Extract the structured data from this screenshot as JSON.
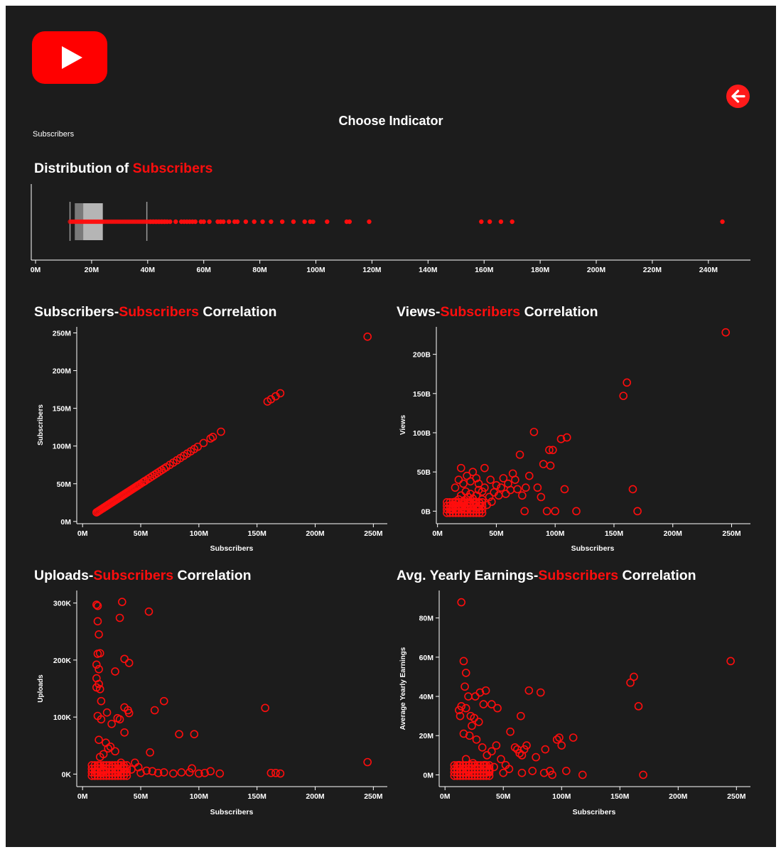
{
  "header": {
    "logo_icon": "youtube-play-icon",
    "back_icon": "arrow-left-circle-icon",
    "choose_title": "Choose Indicator",
    "indicator_value": "Subscribers"
  },
  "colors": {
    "accent": "#ff0d0d",
    "panel_bg": "#1c1c1c",
    "text": "#ffffff",
    "box": "#bfbfbf"
  },
  "titles": {
    "dist": {
      "pre": "Distribution of ",
      "red": "Subscribers",
      "post": ""
    },
    "c1": {
      "pre": "Subscribers-",
      "red": "Subscribers",
      "post": " Correlation"
    },
    "c2": {
      "pre": "Views-",
      "red": "Subscribers",
      "post": " Correlation"
    },
    "c3": {
      "pre": "Uploads-",
      "red": "Subscribers",
      "post": " Correlation"
    },
    "c4": {
      "pre": "Avg. Yearly Earnings-",
      "red": "Subscribers",
      "post": " Correlation"
    }
  },
  "chart_data": [
    {
      "id": "dist",
      "type": "boxplot",
      "xlim": [
        0,
        255
      ],
      "xticks": [
        0,
        20,
        40,
        60,
        80,
        100,
        120,
        140,
        160,
        180,
        200,
        220,
        240
      ],
      "xtick_labels": [
        "0M",
        "20M",
        "40M",
        "60M",
        "80M",
        "100M",
        "120M",
        "140M",
        "160M",
        "180M",
        "200M",
        "220M",
        "240M"
      ],
      "box": {
        "whisker_low": 12.3,
        "q1": 14,
        "median": 17,
        "q3": 24,
        "whisker_high": 39.7
      },
      "outliers": [
        41,
        42,
        43,
        44,
        45,
        46,
        47,
        48,
        50,
        52,
        53,
        54,
        55,
        56,
        57,
        59,
        60,
        62,
        65,
        66,
        67,
        69,
        71,
        72,
        75,
        78,
        81,
        84,
        88,
        92,
        96,
        98,
        99,
        104,
        111,
        112,
        119,
        159,
        162,
        166,
        170,
        245
      ]
    },
    {
      "id": "c1",
      "type": "scatter",
      "xlabel": "Subscribers",
      "ylabel": "Subscribers",
      "xlim": [
        -5,
        262
      ],
      "ylim": [
        -3,
        258
      ],
      "xticks": [
        0,
        50,
        100,
        150,
        200,
        250
      ],
      "xtick_labels": [
        "0M",
        "50M",
        "100M",
        "150M",
        "200M",
        "250M"
      ],
      "yticks": [
        0,
        50,
        100,
        150,
        200,
        250
      ],
      "ytick_labels": [
        "0M",
        "50M",
        "100M",
        "150M",
        "200M",
        "250M"
      ],
      "points": [
        [
          12,
          12
        ],
        [
          13,
          13
        ],
        [
          14,
          14
        ],
        [
          15,
          15
        ],
        [
          16,
          16
        ],
        [
          17,
          17
        ],
        [
          18,
          18
        ],
        [
          19,
          19
        ],
        [
          20,
          20
        ],
        [
          21,
          21
        ],
        [
          22,
          22
        ],
        [
          23,
          23
        ],
        [
          24,
          24
        ],
        [
          25,
          25
        ],
        [
          26,
          26
        ],
        [
          27,
          27
        ],
        [
          28,
          28
        ],
        [
          29,
          29
        ],
        [
          30,
          30
        ],
        [
          31,
          31
        ],
        [
          32,
          32
        ],
        [
          33,
          33
        ],
        [
          34,
          34
        ],
        [
          35,
          35
        ],
        [
          36,
          36
        ],
        [
          37,
          37
        ],
        [
          38,
          38
        ],
        [
          39,
          39
        ],
        [
          40,
          40
        ],
        [
          41,
          41
        ],
        [
          42,
          42
        ],
        [
          43,
          43
        ],
        [
          44,
          44
        ],
        [
          45,
          45
        ],
        [
          46,
          46
        ],
        [
          47,
          47
        ],
        [
          48,
          48
        ],
        [
          50,
          50
        ],
        [
          52,
          52
        ],
        [
          53,
          53
        ],
        [
          54,
          54
        ],
        [
          56,
          56
        ],
        [
          58,
          58
        ],
        [
          60,
          60
        ],
        [
          62,
          62
        ],
        [
          64,
          64
        ],
        [
          66,
          66
        ],
        [
          68,
          68
        ],
        [
          70,
          70
        ],
        [
          72,
          72
        ],
        [
          75,
          75
        ],
        [
          78,
          78
        ],
        [
          81,
          81
        ],
        [
          84,
          84
        ],
        [
          87,
          87
        ],
        [
          90,
          90
        ],
        [
          93,
          93
        ],
        [
          96,
          96
        ],
        [
          99,
          99
        ],
        [
          104,
          104
        ],
        [
          110,
          110
        ],
        [
          112,
          112
        ],
        [
          119,
          119
        ],
        [
          159,
          159
        ],
        [
          162,
          162
        ],
        [
          166,
          166
        ],
        [
          170,
          170
        ],
        [
          245,
          245
        ]
      ]
    },
    {
      "id": "c2",
      "type": "scatter",
      "xlabel": "Subscribers",
      "ylabel": "Views",
      "xlim": [
        -1,
        266
      ],
      "ylim": [
        -16,
        235
      ],
      "xticks": [
        0,
        50,
        100,
        150,
        200,
        250
      ],
      "xtick_labels": [
        "0M",
        "50M",
        "100M",
        "150M",
        "200M",
        "250M"
      ],
      "yticks": [
        0,
        50,
        100,
        150,
        200
      ],
      "ytick_labels": [
        "0B",
        "50B",
        "100B",
        "150B",
        "200B"
      ],
      "points": [
        [
          12,
          2
        ],
        [
          13,
          5
        ],
        [
          14,
          8
        ],
        [
          15,
          12
        ],
        [
          16,
          3
        ],
        [
          17,
          10
        ],
        [
          18,
          15
        ],
        [
          19,
          6
        ],
        [
          20,
          20
        ],
        [
          21,
          4
        ],
        [
          22,
          9
        ],
        [
          23,
          14
        ],
        [
          24,
          25
        ],
        [
          25,
          7
        ],
        [
          26,
          18
        ],
        [
          27,
          11
        ],
        [
          28,
          22
        ],
        [
          29,
          3
        ],
        [
          30,
          16
        ],
        [
          31,
          8
        ],
        [
          32,
          12
        ],
        [
          33,
          20
        ],
        [
          34,
          5
        ],
        [
          35,
          27
        ],
        [
          36,
          10
        ],
        [
          38,
          15
        ],
        [
          40,
          30
        ],
        [
          42,
          8
        ],
        [
          44,
          18
        ],
        [
          46,
          12
        ],
        [
          48,
          24
        ],
        [
          50,
          33
        ],
        [
          52,
          20
        ],
        [
          54,
          30
        ],
        [
          56,
          42
        ],
        [
          58,
          22
        ],
        [
          60,
          35
        ],
        [
          62,
          27
        ],
        [
          64,
          48
        ],
        [
          66,
          40
        ],
        [
          68,
          28
        ],
        [
          70,
          72
        ],
        [
          72,
          20
        ],
        [
          75,
          30
        ],
        [
          78,
          45
        ],
        [
          82,
          101
        ],
        [
          85,
          30
        ],
        [
          88,
          18
        ],
        [
          90,
          60
        ],
        [
          95,
          78
        ],
        [
          96,
          58
        ],
        [
          98,
          78
        ],
        [
          105,
          92
        ],
        [
          110,
          94
        ],
        [
          108,
          28
        ],
        [
          118,
          0
        ],
        [
          100,
          0
        ],
        [
          74,
          0
        ],
        [
          93,
          0
        ],
        [
          158,
          147
        ],
        [
          161,
          164
        ],
        [
          166,
          28
        ],
        [
          170,
          0
        ],
        [
          245,
          228
        ],
        [
          20,
          55
        ],
        [
          25,
          45
        ],
        [
          30,
          50
        ],
        [
          35,
          35
        ],
        [
          40,
          55
        ],
        [
          45,
          40
        ],
        [
          15,
          30
        ],
        [
          18,
          40
        ],
        [
          22,
          35
        ],
        [
          28,
          38
        ],
        [
          33,
          42
        ],
        [
          38,
          25
        ]
      ]
    },
    {
      "id": "c3",
      "type": "scatter",
      "xlabel": "Subscribers",
      "ylabel": "Uploads",
      "xlim": [
        -5,
        262
      ],
      "ylim": [
        -22,
        322
      ],
      "xticks": [
        0,
        50,
        100,
        150,
        200,
        250
      ],
      "xtick_labels": [
        "0M",
        "50M",
        "100M",
        "150M",
        "200M",
        "250M"
      ],
      "yticks": [
        0,
        100,
        200,
        300
      ],
      "ytick_labels": [
        "0K",
        "100K",
        "200K",
        "300K"
      ],
      "points": [
        [
          12,
          297
        ],
        [
          13,
          295
        ],
        [
          34,
          302
        ],
        [
          57,
          285
        ],
        [
          32,
          274
        ],
        [
          13,
          268
        ],
        [
          14,
          245
        ],
        [
          13,
          211
        ],
        [
          15,
          212
        ],
        [
          36,
          202
        ],
        [
          40,
          195
        ],
        [
          12,
          192
        ],
        [
          14,
          184
        ],
        [
          28,
          180
        ],
        [
          12,
          168
        ],
        [
          12,
          152
        ],
        [
          14,
          158
        ],
        [
          15,
          149
        ],
        [
          16,
          128
        ],
        [
          70,
          128
        ],
        [
          36,
          117
        ],
        [
          39,
          112
        ],
        [
          40,
          107
        ],
        [
          30,
          98
        ],
        [
          32,
          96
        ],
        [
          25,
          88
        ],
        [
          13,
          102
        ],
        [
          16,
          96
        ],
        [
          21,
          108
        ],
        [
          62,
          112
        ],
        [
          36,
          73
        ],
        [
          83,
          70
        ],
        [
          96,
          70
        ],
        [
          14,
          60
        ],
        [
          20,
          55
        ],
        [
          22,
          45
        ],
        [
          24,
          48
        ],
        [
          28,
          40
        ],
        [
          18,
          35
        ],
        [
          15,
          30
        ],
        [
          45,
          20
        ],
        [
          58,
          38
        ],
        [
          33,
          20
        ],
        [
          157,
          116
        ],
        [
          162,
          2
        ],
        [
          166,
          2
        ],
        [
          170,
          1
        ],
        [
          245,
          21
        ],
        [
          94,
          10
        ],
        [
          110,
          5
        ],
        [
          85,
          3
        ],
        [
          118,
          1
        ],
        [
          100,
          1
        ],
        [
          78,
          1
        ],
        [
          70,
          3
        ],
        [
          60,
          5
        ],
        [
          50,
          2
        ],
        [
          42,
          8
        ],
        [
          35,
          12
        ],
        [
          30,
          5
        ],
        [
          25,
          3
        ],
        [
          20,
          10
        ],
        [
          18,
          6
        ],
        [
          16,
          2
        ],
        [
          14,
          15
        ],
        [
          12,
          4
        ],
        [
          26,
          14
        ],
        [
          48,
          12
        ],
        [
          55,
          6
        ],
        [
          65,
          2
        ],
        [
          92,
          3
        ],
        [
          105,
          2
        ]
      ]
    },
    {
      "id": "c4",
      "type": "scatter",
      "xlabel": "Subscribers",
      "ylabel": "Average Yearly Earnings",
      "xlim": [
        -5,
        262
      ],
      "ylim": [
        -6,
        94
      ],
      "xticks": [
        0,
        50,
        100,
        150,
        200,
        250
      ],
      "xtick_labels": [
        "0M",
        "50M",
        "100M",
        "150M",
        "200M",
        "250M"
      ],
      "yticks": [
        0,
        20,
        40,
        60,
        80
      ],
      "ytick_labels": [
        "0M",
        "20M",
        "40M",
        "60M",
        "80M"
      ],
      "points": [
        [
          14,
          88
        ],
        [
          16,
          58
        ],
        [
          18,
          52
        ],
        [
          17,
          45
        ],
        [
          35,
          43
        ],
        [
          30,
          42
        ],
        [
          26,
          40
        ],
        [
          20,
          40
        ],
        [
          12,
          33
        ],
        [
          14,
          35
        ],
        [
          18,
          34
        ],
        [
          40,
          36
        ],
        [
          33,
          36
        ],
        [
          45,
          34
        ],
        [
          13,
          30
        ],
        [
          22,
          30
        ],
        [
          25,
          29
        ],
        [
          29,
          27
        ],
        [
          23,
          25
        ],
        [
          16,
          21
        ],
        [
          21,
          20
        ],
        [
          27,
          18
        ],
        [
          32,
          14
        ],
        [
          36,
          10
        ],
        [
          40,
          12
        ],
        [
          44,
          15
        ],
        [
          48,
          8
        ],
        [
          52,
          5
        ],
        [
          56,
          22
        ],
        [
          60,
          14
        ],
        [
          62,
          13
        ],
        [
          64,
          11
        ],
        [
          66,
          10
        ],
        [
          68,
          13
        ],
        [
          70,
          15
        ],
        [
          72,
          43
        ],
        [
          78,
          9
        ],
        [
          82,
          42
        ],
        [
          86,
          13
        ],
        [
          90,
          2
        ],
        [
          96,
          18
        ],
        [
          98,
          19
        ],
        [
          100,
          15
        ],
        [
          110,
          19
        ],
        [
          118,
          0
        ],
        [
          104,
          2
        ],
        [
          92,
          0
        ],
        [
          159,
          47
        ],
        [
          162,
          50
        ],
        [
          166,
          35
        ],
        [
          170,
          0
        ],
        [
          245,
          58
        ],
        [
          12,
          5
        ],
        [
          15,
          3
        ],
        [
          18,
          8
        ],
        [
          20,
          2
        ],
        [
          24,
          6
        ],
        [
          28,
          3
        ],
        [
          34,
          5
        ],
        [
          38,
          2
        ],
        [
          42,
          4
        ],
        [
          50,
          1
        ],
        [
          55,
          3
        ],
        [
          66,
          1
        ],
        [
          75,
          2
        ],
        [
          85,
          1
        ],
        [
          65,
          30
        ]
      ]
    }
  ]
}
